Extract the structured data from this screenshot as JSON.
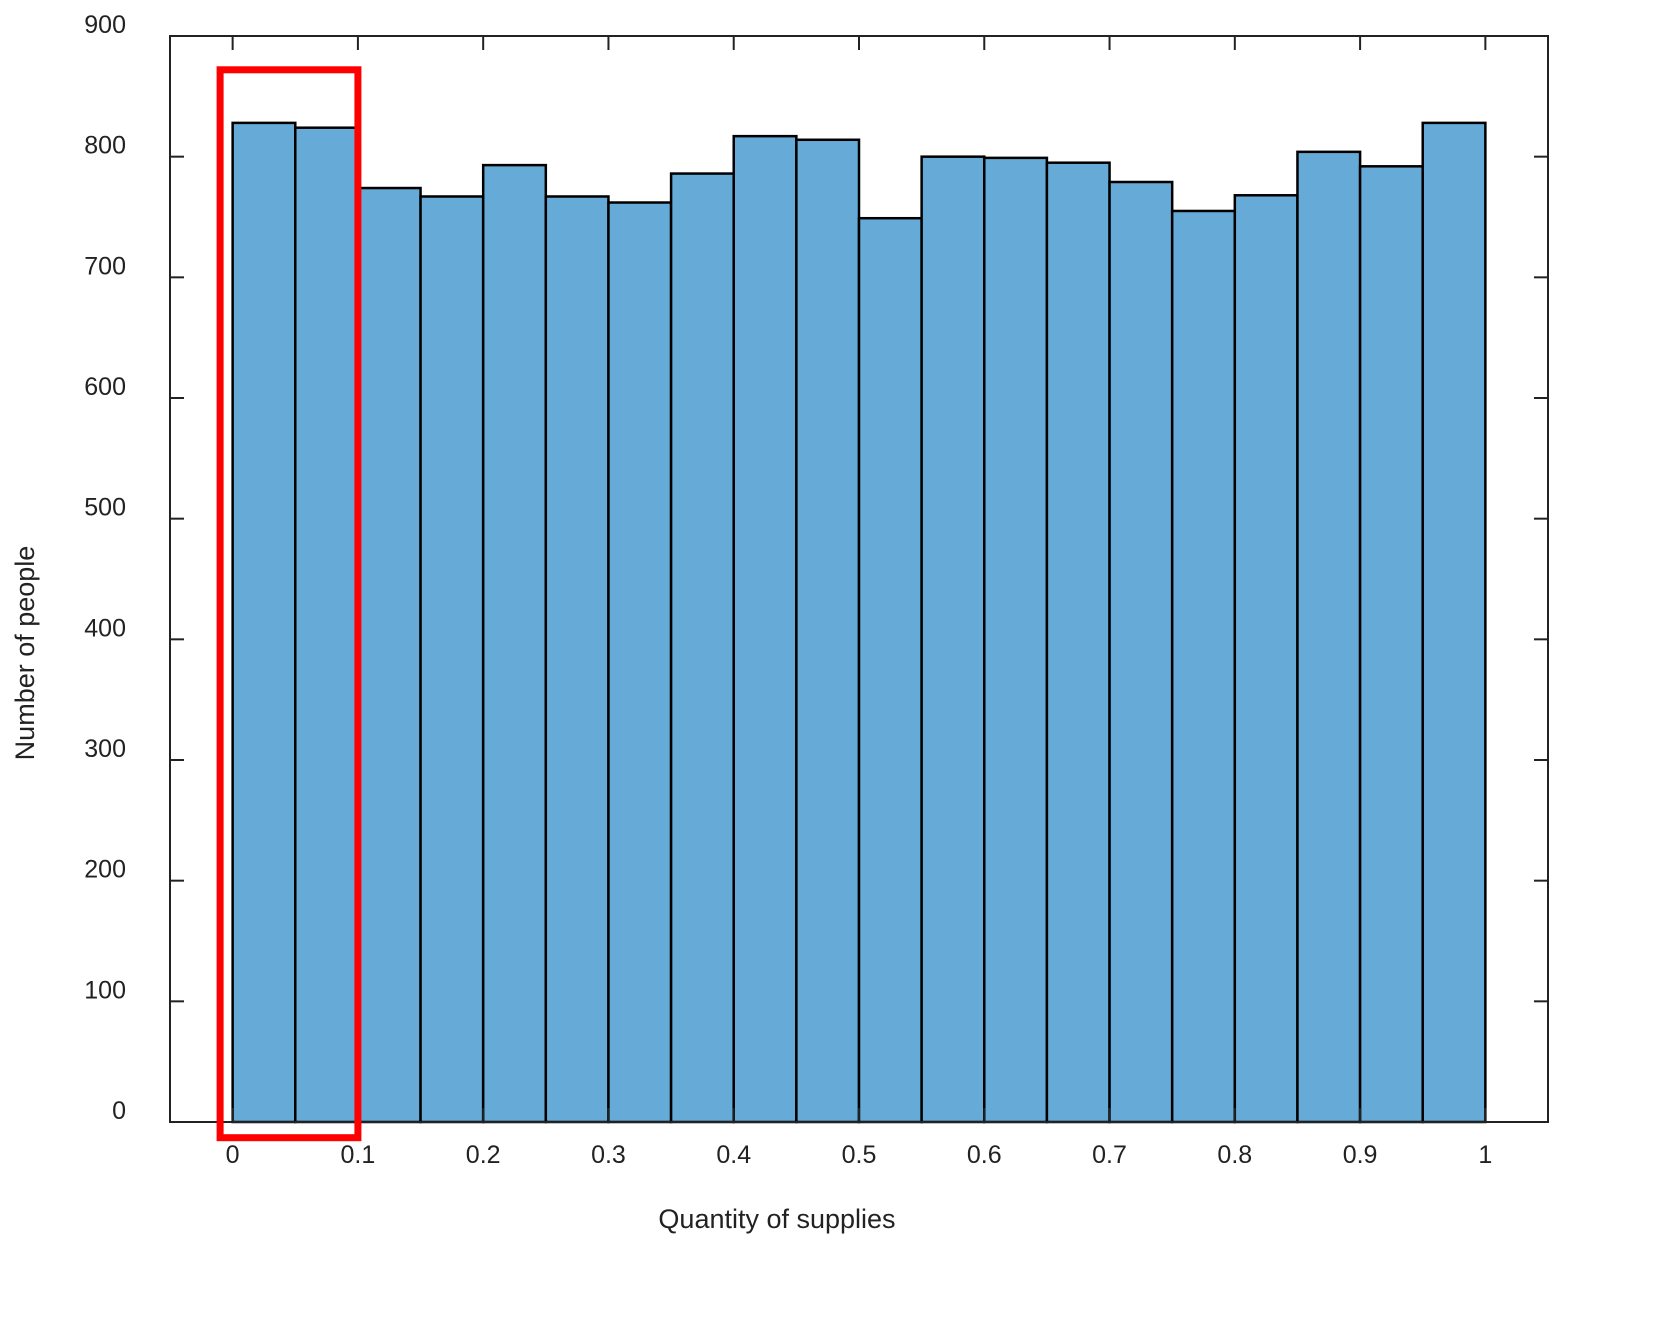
{
  "chart_data": {
    "type": "bar",
    "title": "",
    "xlabel": "Quantity of supplies",
    "ylabel": "Number of people",
    "xlim": [
      -0.05,
      1.05
    ],
    "ylim": [
      0,
      900
    ],
    "xticks": [
      {
        "value": 0,
        "label": "0"
      },
      {
        "value": 0.1,
        "label": "0.1"
      },
      {
        "value": 0.2,
        "label": "0.2"
      },
      {
        "value": 0.3,
        "label": "0.3"
      },
      {
        "value": 0.4,
        "label": "0.4"
      },
      {
        "value": 0.5,
        "label": "0.5"
      },
      {
        "value": 0.6,
        "label": "0.6"
      },
      {
        "value": 0.7,
        "label": "0.7"
      },
      {
        "value": 0.8,
        "label": "0.8"
      },
      {
        "value": 0.9,
        "label": "0.9"
      },
      {
        "value": 1,
        "label": "1"
      }
    ],
    "yticks": [
      {
        "value": 0,
        "label": "0"
      },
      {
        "value": 100,
        "label": "100"
      },
      {
        "value": 200,
        "label": "200"
      },
      {
        "value": 300,
        "label": "300"
      },
      {
        "value": 400,
        "label": "400"
      },
      {
        "value": 500,
        "label": "500"
      },
      {
        "value": 600,
        "label": "600"
      },
      {
        "value": 700,
        "label": "700"
      },
      {
        "value": 800,
        "label": "800"
      },
      {
        "value": 900,
        "label": "900"
      }
    ],
    "bins": [
      {
        "start": 0.0,
        "end": 0.05,
        "value": 828
      },
      {
        "start": 0.05,
        "end": 0.1,
        "value": 824
      },
      {
        "start": 0.1,
        "end": 0.15,
        "value": 774
      },
      {
        "start": 0.15,
        "end": 0.2,
        "value": 767
      },
      {
        "start": 0.2,
        "end": 0.25,
        "value": 793
      },
      {
        "start": 0.25,
        "end": 0.3,
        "value": 767
      },
      {
        "start": 0.3,
        "end": 0.35,
        "value": 762
      },
      {
        "start": 0.35,
        "end": 0.4,
        "value": 786
      },
      {
        "start": 0.4,
        "end": 0.45,
        "value": 817
      },
      {
        "start": 0.45,
        "end": 0.5,
        "value": 814
      },
      {
        "start": 0.5,
        "end": 0.55,
        "value": 749
      },
      {
        "start": 0.55,
        "end": 0.6,
        "value": 800
      },
      {
        "start": 0.6,
        "end": 0.65,
        "value": 799
      },
      {
        "start": 0.65,
        "end": 0.7,
        "value": 795
      },
      {
        "start": 0.7,
        "end": 0.75,
        "value": 779
      },
      {
        "start": 0.75,
        "end": 0.8,
        "value": 755
      },
      {
        "start": 0.8,
        "end": 0.85,
        "value": 768
      },
      {
        "start": 0.85,
        "end": 0.9,
        "value": 804
      },
      {
        "start": 0.9,
        "end": 0.95,
        "value": 792
      },
      {
        "start": 0.95,
        "end": 1.0,
        "value": 828
      }
    ],
    "highlight": {
      "x_range": [
        -0.01,
        0.1
      ],
      "y_range": [
        -13,
        872
      ],
      "color": "#ff0000"
    },
    "colors": {
      "bar_fill": "#66aad7",
      "bar_edge": "#000000",
      "frame": "#222222"
    },
    "grid": false,
    "legend": "none"
  }
}
